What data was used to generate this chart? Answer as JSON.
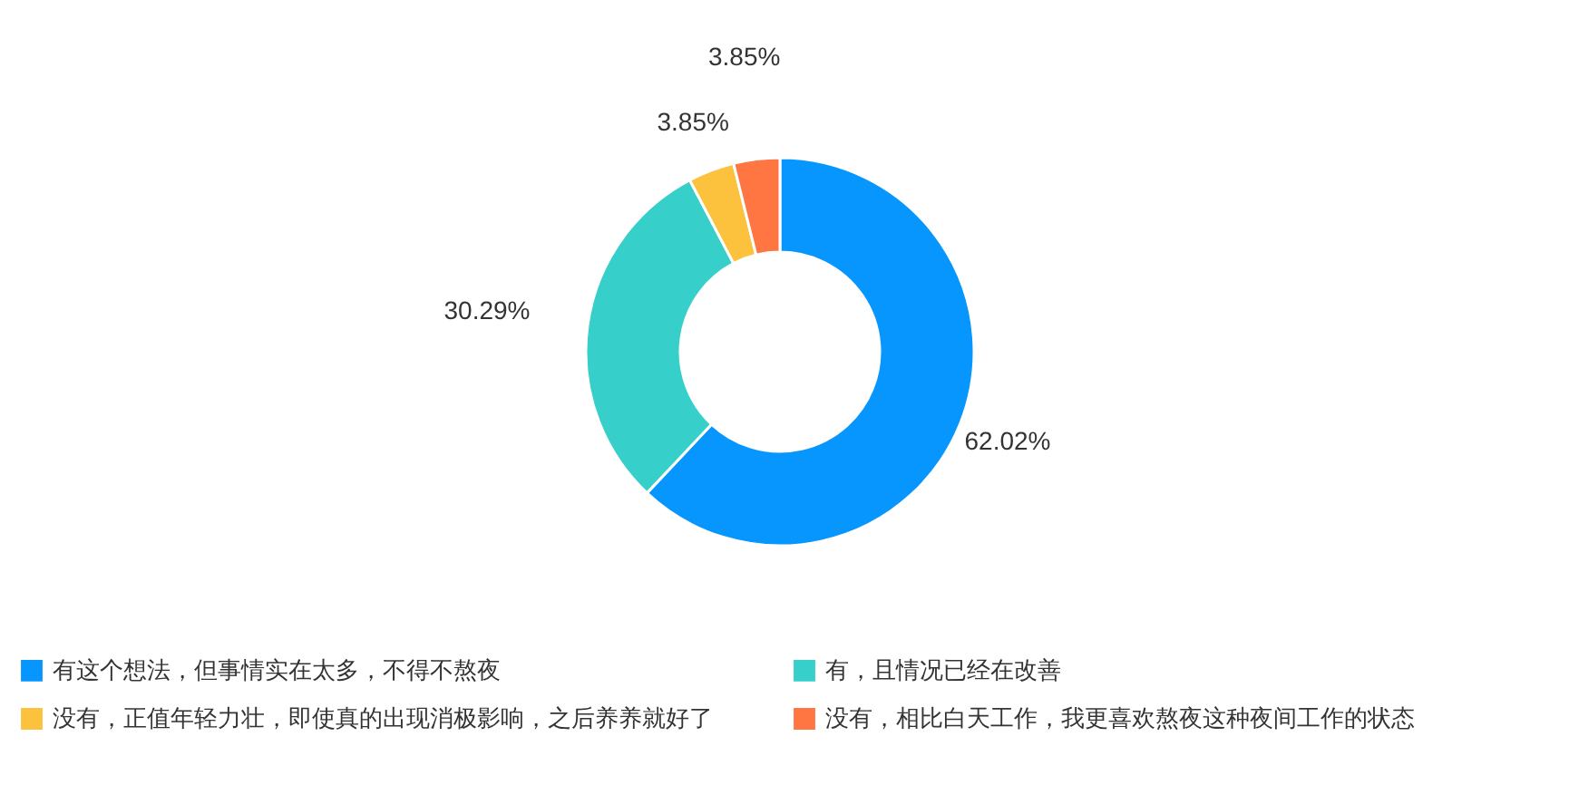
{
  "chart_data": {
    "type": "donut",
    "categories": [
      "有这个想法，但事情实在太多，不得不熬夜",
      "有，且情况已经在改善",
      "没有，正值年轻力壮，即使真的出现消极影响，之后养养就好了",
      "没有，相比白天工作，我更喜欢熬夜这种夜间工作的状态"
    ],
    "values": [
      62.02,
      30.29,
      3.85,
      3.85
    ],
    "value_labels": [
      "62.02%",
      "30.29%",
      "3.85%",
      "3.85%"
    ],
    "colors": [
      "#0696fe",
      "#36cfc9",
      "#fcc23e",
      "#ff7643"
    ],
    "legend": "bottom"
  }
}
